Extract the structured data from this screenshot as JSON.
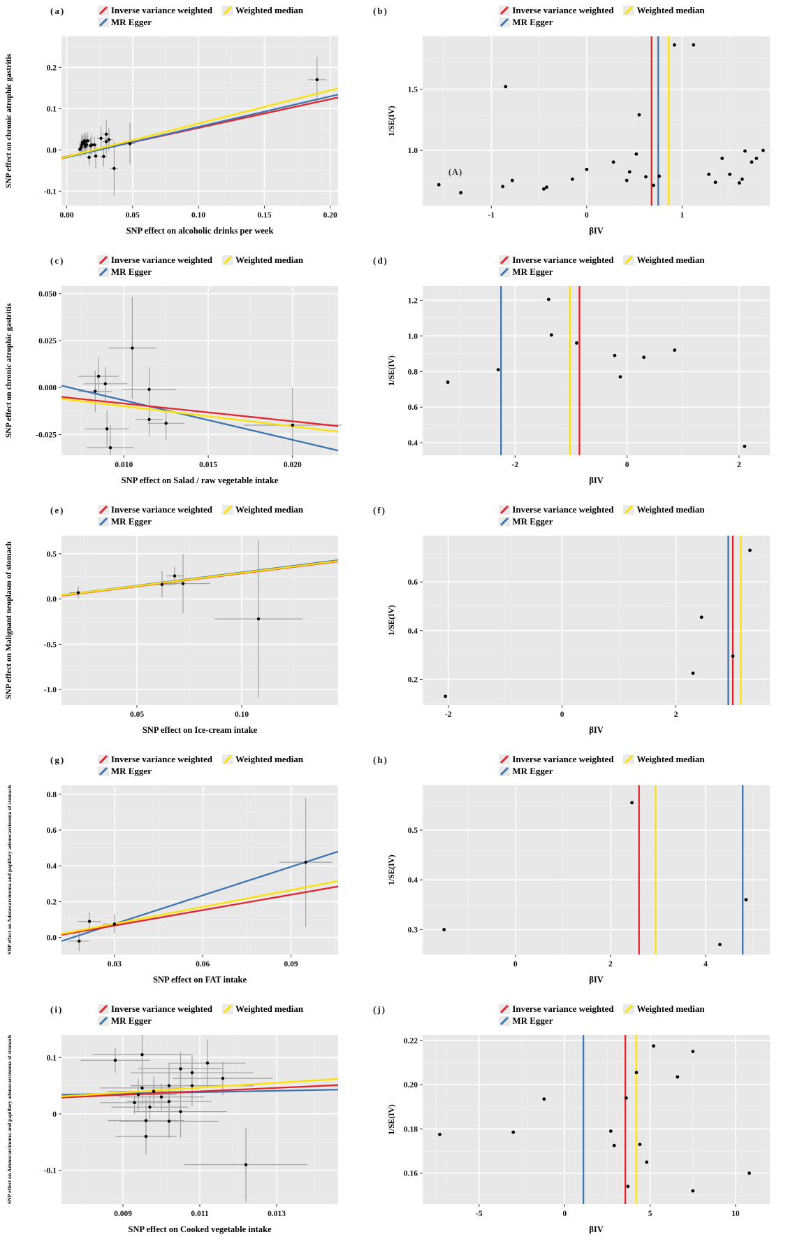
{
  "legend": {
    "items": [
      {
        "name": "inverse-variance-weighted",
        "label": "Inverse variance weighted",
        "color": "#e3242b"
      },
      {
        "name": "mr-egger",
        "label": "MR Egger",
        "color": "#3e75b0"
      },
      {
        "name": "weighted-median",
        "label": "Weighted median",
        "color": "#ffe100"
      }
    ]
  },
  "colors": {
    "panel_bg": "#e8e8e8",
    "grid_major": "#ffffff",
    "grid_minor": "#f3f3f3",
    "point": "#000000",
    "errorbar": "#a0a0a0",
    "tick_text": "#111111"
  },
  "chart_data": [
    {
      "panel_label": "(a)",
      "type": "scatter",
      "xlabel": "SNP effect on alcoholic drinks per week",
      "ylabel": "SNP effect on chronic atrophic gastritis",
      "xlim": [
        -0.004,
        0.206
      ],
      "ylim": [
        -0.135,
        0.275
      ],
      "xticks": [
        0,
        0.05,
        0.1,
        0.15,
        0.2
      ],
      "xtick_labels": [
        "0.00",
        "0.05",
        "0.10",
        "0.15",
        "0.20"
      ],
      "yticks": [
        -0.1,
        0,
        0.1,
        0.2
      ],
      "ytick_labels": [
        "-0.1",
        "0.0",
        "0.1",
        "0.2"
      ],
      "points": [
        [
          0.01,
          0.001,
          0.002,
          0.018
        ],
        [
          0.011,
          0.006,
          0.002,
          0.02
        ],
        [
          0.0115,
          0.012,
          0.002,
          0.022
        ],
        [
          0.012,
          0.018,
          0.002,
          0.022
        ],
        [
          0.013,
          0.015,
          0.002,
          0.02
        ],
        [
          0.0135,
          0.022,
          0.002,
          0.02
        ],
        [
          0.014,
          0.008,
          0.002,
          0.02
        ],
        [
          0.0145,
          0.02,
          0.002,
          0.02
        ],
        [
          0.015,
          0.012,
          0.002,
          0.02
        ],
        [
          0.016,
          0.022,
          0.002,
          0.02
        ],
        [
          0.017,
          -0.018,
          0.002,
          0.02
        ],
        [
          0.018,
          0.01,
          0.002,
          0.02
        ],
        [
          0.019,
          0.012,
          0.002,
          0.025
        ],
        [
          0.021,
          0.012,
          0.0025,
          0.02
        ],
        [
          0.022,
          -0.015,
          0.002,
          0.03
        ],
        [
          0.026,
          0.028,
          0.003,
          0.03
        ],
        [
          0.028,
          -0.016,
          0.0025,
          0.025
        ],
        [
          0.03,
          0.038,
          0.003,
          0.035
        ],
        [
          0.03,
          0.02,
          0.003,
          0.03
        ],
        [
          0.032,
          0.025,
          0.003,
          0.028
        ],
        [
          0.036,
          -0.045,
          0.003,
          0.065
        ],
        [
          0.048,
          0.015,
          0.004,
          0.05
        ],
        [
          0.19,
          0.17,
          0.007,
          0.055
        ]
      ],
      "lines": [
        {
          "series": "ivw",
          "y_start": -0.019,
          "y_end": 0.127
        },
        {
          "series": "egger",
          "y_start": -0.021,
          "y_end": 0.134
        },
        {
          "series": "wm",
          "y_start": -0.02,
          "y_end": 0.149
        }
      ]
    },
    {
      "panel_label": "(b)",
      "type": "funnel",
      "xlabel": "βIV",
      "ylabel": "1/SE(IV)",
      "xlim": [
        -1.72,
        1.92
      ],
      "ylim": [
        0.55,
        1.93
      ],
      "xticks": [
        -1,
        0,
        1
      ],
      "xtick_labels": [
        "-1",
        "0",
        "1"
      ],
      "yticks": [
        1.0,
        1.5
      ],
      "ytick_labels": [
        "1.0",
        "1.5"
      ],
      "points": [
        [
          -1.55,
          0.72
        ],
        [
          -1.32,
          0.655
        ],
        [
          -0.88,
          0.705
        ],
        [
          -0.85,
          1.52
        ],
        [
          -0.78,
          0.755
        ],
        [
          -0.45,
          0.685
        ],
        [
          -0.42,
          0.7
        ],
        [
          -0.15,
          0.765
        ],
        [
          0.0,
          0.845
        ],
        [
          0.28,
          0.905
        ],
        [
          0.42,
          0.755
        ],
        [
          0.45,
          0.825
        ],
        [
          0.52,
          0.97
        ],
        [
          0.55,
          1.29
        ],
        [
          0.62,
          0.785
        ],
        [
          0.7,
          0.715
        ],
        [
          0.76,
          0.79
        ],
        [
          0.92,
          1.86
        ],
        [
          1.12,
          1.86
        ],
        [
          1.28,
          0.805
        ],
        [
          1.35,
          0.74
        ],
        [
          1.42,
          0.935
        ],
        [
          1.5,
          0.805
        ],
        [
          1.6,
          0.735
        ],
        [
          1.63,
          0.765
        ],
        [
          1.66,
          0.995
        ],
        [
          1.73,
          0.905
        ],
        [
          1.78,
          0.935
        ],
        [
          1.85,
          1.0
        ]
      ],
      "vlines": [
        {
          "series": "ivw",
          "x": 0.68
        },
        {
          "series": "egger",
          "x": 0.75
        },
        {
          "series": "wm",
          "x": 0.86
        }
      ],
      "annotation": {
        "text": "(A)",
        "x": -1.45,
        "y": 0.8
      }
    },
    {
      "panel_label": "(c)",
      "type": "scatter",
      "xlabel": "SNP effect on Salad / raw vegetable intake",
      "ylabel": "SNP effect on chronic atrophic gastritis",
      "xlim": [
        0.0063,
        0.0227
      ],
      "ylim": [
        -0.036,
        0.054
      ],
      "xticks": [
        0.01,
        0.015,
        0.02
      ],
      "xtick_labels": [
        "0.010",
        "0.015",
        "0.020"
      ],
      "yticks": [
        -0.025,
        0,
        0.025,
        0.05
      ],
      "ytick_labels": [
        "-0.025",
        "0.000",
        "0.025",
        "0.050"
      ],
      "points": [
        [
          0.0085,
          0.006,
          0.0012,
          0.01
        ],
        [
          0.0089,
          0.002,
          0.0013,
          0.009
        ],
        [
          0.0083,
          -0.002,
          0.001,
          0.011
        ],
        [
          0.0105,
          0.021,
          0.0014,
          0.027
        ],
        [
          0.0115,
          -0.001,
          0.0016,
          0.012
        ],
        [
          0.0115,
          -0.017,
          0.0008,
          0.009
        ],
        [
          0.0125,
          -0.019,
          0.0011,
          0.009
        ],
        [
          0.009,
          -0.022,
          0.0013,
          0.01
        ],
        [
          0.0092,
          -0.032,
          0.0014,
          0.012
        ],
        [
          0.02,
          -0.02,
          0.0029,
          0.02
        ]
      ],
      "lines": [
        {
          "series": "egger",
          "y_start": 0.001,
          "y_end": -0.0335
        },
        {
          "series": "ivw",
          "y_start": -0.005,
          "y_end": -0.0205
        },
        {
          "series": "wm",
          "y_start": -0.006,
          "y_end": -0.0235
        }
      ]
    },
    {
      "panel_label": "(d)",
      "type": "funnel",
      "xlabel": "βIV",
      "ylabel": "1/SE(IV)",
      "xlim": [
        -3.65,
        2.55
      ],
      "ylim": [
        0.33,
        1.28
      ],
      "xticks": [
        -2,
        0,
        2
      ],
      "xtick_labels": [
        "-2",
        "0",
        "2"
      ],
      "yticks": [
        0.4,
        0.6,
        0.8,
        1.0,
        1.2
      ],
      "ytick_labels": [
        "0.4",
        "0.6",
        "0.8",
        "1.0",
        "1.2"
      ],
      "points": [
        [
          -3.2,
          0.74
        ],
        [
          -2.3,
          0.81
        ],
        [
          -1.4,
          1.205
        ],
        [
          -1.35,
          1.005
        ],
        [
          -0.9,
          0.96
        ],
        [
          -0.22,
          0.89
        ],
        [
          -0.12,
          0.77
        ],
        [
          0.3,
          0.88
        ],
        [
          0.85,
          0.92
        ],
        [
          2.1,
          0.38
        ]
      ],
      "vlines": [
        {
          "series": "egger",
          "x": -2.25
        },
        {
          "series": "wm",
          "x": -1.02
        },
        {
          "series": "ivw",
          "x": -0.85
        }
      ]
    },
    {
      "panel_label": "(e)",
      "type": "scatter",
      "xlabel": "SNP effect on Ice-cream intake",
      "ylabel": "SNP effect on Malignant neoplasm of stomach",
      "xlim": [
        0.014,
        0.146
      ],
      "ylim": [
        -1.17,
        0.7
      ],
      "xticks": [
        0.05,
        0.1
      ],
      "xtick_labels": [
        "0.05",
        "0.10"
      ],
      "yticks": [
        -1.0,
        -0.5,
        0,
        0.5
      ],
      "ytick_labels": [
        "-1.0",
        "-0.5",
        "0.0",
        "0.5"
      ],
      "points": [
        [
          0.022,
          0.07,
          0.004,
          0.07
        ],
        [
          0.062,
          0.16,
          0.006,
          0.145
        ],
        [
          0.068,
          0.255,
          0.004,
          0.1
        ],
        [
          0.072,
          0.17,
          0.013,
          0.33
        ],
        [
          0.108,
          -0.22,
          0.021,
          0.87
        ]
      ],
      "lines": [
        {
          "series": "ivw",
          "y_start": 0.036,
          "y_end": 0.415
        },
        {
          "series": "egger",
          "y_start": 0.042,
          "y_end": 0.428
        },
        {
          "series": "wm",
          "y_start": 0.04,
          "y_end": 0.42
        }
      ]
    },
    {
      "panel_label": "(f)",
      "type": "funnel",
      "xlabel": "βIV",
      "ylabel": "1/SE(IV)",
      "xlim": [
        -2.45,
        3.65
      ],
      "ylim": [
        0.095,
        0.79
      ],
      "xticks": [
        -2,
        0,
        2
      ],
      "xtick_labels": [
        "-2",
        "0",
        "2"
      ],
      "yticks": [
        0.2,
        0.4,
        0.6
      ],
      "ytick_labels": [
        "0.2",
        "0.4",
        "0.6"
      ],
      "points": [
        [
          -2.05,
          0.13
        ],
        [
          2.3,
          0.225
        ],
        [
          2.45,
          0.455
        ],
        [
          3.0,
          0.295
        ],
        [
          3.3,
          0.73
        ]
      ],
      "vlines": [
        {
          "series": "egger",
          "x": 2.92
        },
        {
          "series": "ivw",
          "x": 3.0
        },
        {
          "series": "wm",
          "x": 3.14
        }
      ]
    },
    {
      "panel_label": "(g)",
      "type": "scatter",
      "xlabel": "SNP effect on FAT intake",
      "ylabel": "SNP effect on Adenocarcinoma and papillary adenocarcinoma of stomach",
      "xlim": [
        0.012,
        0.106
      ],
      "ylim": [
        -0.095,
        0.85
      ],
      "xticks": [
        0.03,
        0.06,
        0.09
      ],
      "xtick_labels": [
        "0.03",
        "0.06",
        "0.09"
      ],
      "yticks": [
        0,
        0.2,
        0.4,
        0.6,
        0.8
      ],
      "ytick_labels": [
        "0.0",
        "0.2",
        "0.4",
        "0.6",
        "0.8"
      ],
      "points": [
        [
          0.018,
          -0.02,
          0.0035,
          0.055
        ],
        [
          0.0215,
          0.09,
          0.004,
          0.05
        ],
        [
          0.03,
          0.075,
          0.004,
          0.055
        ],
        [
          0.095,
          0.42,
          0.009,
          0.36
        ]
      ],
      "lines": [
        {
          "series": "egger",
          "y_start": -0.02,
          "y_end": 0.48
        },
        {
          "series": "ivw",
          "y_start": 0.015,
          "y_end": 0.285
        },
        {
          "series": "wm",
          "y_start": 0.02,
          "y_end": 0.315
        }
      ]
    },
    {
      "panel_label": "(h)",
      "type": "funnel",
      "xlabel": "βIV",
      "ylabel": "1/SE(IV)",
      "xlim": [
        -1.95,
        5.35
      ],
      "ylim": [
        0.25,
        0.59
      ],
      "xticks": [
        0,
        2,
        4
      ],
      "xtick_labels": [
        "0",
        "2",
        "4"
      ],
      "yticks": [
        0.3,
        0.4,
        0.5
      ],
      "ytick_labels": [
        "0.3",
        "0.4",
        "0.5"
      ],
      "points": [
        [
          -1.5,
          0.3
        ],
        [
          2.45,
          0.555
        ],
        [
          4.3,
          0.27
        ],
        [
          4.85,
          0.36
        ]
      ],
      "vlines": [
        {
          "series": "ivw",
          "x": 2.6
        },
        {
          "series": "wm",
          "x": 2.95
        },
        {
          "series": "egger",
          "x": 4.78
        }
      ]
    },
    {
      "panel_label": "(i)",
      "type": "scatter",
      "xlabel": "SNP effect on Cooked vegetable intake",
      "ylabel": "SNP effect on Adenocarcinoma and papillary adenocarcinoma of stomach",
      "xlim": [
        0.0074,
        0.0146
      ],
      "ylim": [
        -0.16,
        0.14
      ],
      "xticks": [
        0.009,
        0.011,
        0.013
      ],
      "xtick_labels": [
        "0.009",
        "0.011",
        "0.013"
      ],
      "yticks": [
        -0.1,
        0,
        0.1
      ],
      "ytick_labels": [
        "-0.1",
        "0",
        "0.1"
      ],
      "points": [
        [
          0.0088,
          0.095,
          0.0009,
          0.022
        ],
        [
          0.0095,
          0.105,
          0.0013,
          0.038
        ],
        [
          0.0105,
          0.08,
          0.0011,
          0.03
        ],
        [
          0.0108,
          0.073,
          0.0016,
          0.032
        ],
        [
          0.0112,
          0.09,
          0.001,
          0.042
        ],
        [
          0.0116,
          0.063,
          0.0013,
          0.03
        ],
        [
          0.0095,
          0.046,
          0.0011,
          0.03
        ],
        [
          0.0098,
          0.04,
          0.0012,
          0.026
        ],
        [
          0.0102,
          0.05,
          0.001,
          0.04
        ],
        [
          0.0108,
          0.05,
          0.0016,
          0.036
        ],
        [
          0.0094,
          0.034,
          0.001,
          0.028
        ],
        [
          0.01,
          0.03,
          0.0011,
          0.024
        ],
        [
          0.0093,
          0.02,
          0.0009,
          0.02
        ],
        [
          0.0097,
          0.012,
          0.001,
          0.022
        ],
        [
          0.0102,
          0.022,
          0.0011,
          0.03
        ],
        [
          0.0105,
          0.004,
          0.0012,
          0.046
        ],
        [
          0.0096,
          -0.012,
          0.001,
          0.04
        ],
        [
          0.0102,
          -0.013,
          0.0013,
          0.03
        ],
        [
          0.0096,
          -0.04,
          0.0008,
          0.032
        ],
        [
          0.0122,
          -0.09,
          0.0016,
          0.066
        ]
      ],
      "lines": [
        {
          "series": "egger",
          "y_start": 0.034,
          "y_end": 0.043
        },
        {
          "series": "ivw",
          "y_start": 0.029,
          "y_end": 0.051
        },
        {
          "series": "wm",
          "y_start": 0.031,
          "y_end": 0.062
        }
      ]
    },
    {
      "panel_label": "(j)",
      "type": "funnel",
      "xlabel": "βIV",
      "ylabel": "1/SE(IV)",
      "xlim": [
        -8.3,
        12.0
      ],
      "ylim": [
        0.146,
        0.2225
      ],
      "xticks": [
        -5,
        0,
        5,
        10
      ],
      "xtick_labels": [
        "-5",
        "0",
        "5",
        "10"
      ],
      "yticks": [
        0.16,
        0.18,
        0.2,
        0.22
      ],
      "ytick_labels": [
        "0.16",
        "0.18",
        "0.20",
        "0.22"
      ],
      "points": [
        [
          -7.3,
          0.1775
        ],
        [
          -3.0,
          0.1785
        ],
        [
          -1.2,
          0.1935
        ],
        [
          2.7,
          0.179
        ],
        [
          2.9,
          0.1725
        ],
        [
          3.6,
          0.194
        ],
        [
          3.7,
          0.154
        ],
        [
          4.2,
          0.2055
        ],
        [
          4.4,
          0.173
        ],
        [
          4.8,
          0.165
        ],
        [
          5.2,
          0.2175
        ],
        [
          6.6,
          0.2035
        ],
        [
          7.5,
          0.215
        ],
        [
          7.5,
          0.152
        ],
        [
          10.8,
          0.16
        ]
      ],
      "vlines": [
        {
          "series": "egger",
          "x": 1.1
        },
        {
          "series": "ivw",
          "x": 3.55
        },
        {
          "series": "wm",
          "x": 4.2
        }
      ]
    }
  ]
}
